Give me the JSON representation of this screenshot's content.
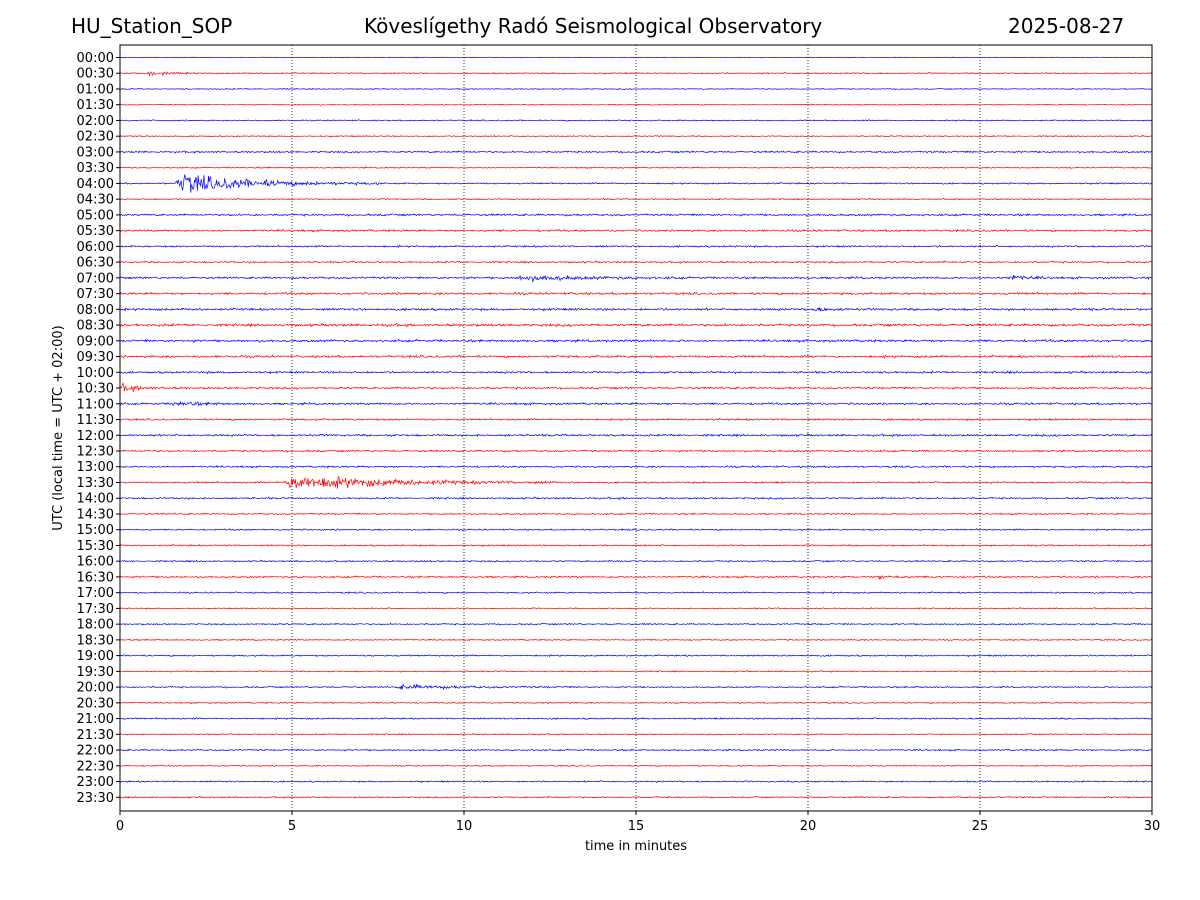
{
  "header": {
    "station": "HU_Station_SOP",
    "title": "Köveslígethy Radó Seismological Observatory",
    "date": "2025-08-27"
  },
  "chart_data": {
    "type": "line",
    "title": "Köveslígethy Radó Seismological Observatory",
    "xlabel": "time in minutes",
    "ylabel": "UTC (local time = UTC + 02:00)",
    "xlim": [
      0,
      30
    ],
    "xticks": [
      "0",
      "5",
      "10",
      "15",
      "20",
      "25",
      "30"
    ],
    "xtick_values": [
      0,
      5,
      10,
      15,
      20,
      25,
      30
    ],
    "grid": "vertical dotted at x ticks",
    "row_labels": [
      "00:00",
      "00:30",
      "01:00",
      "01:30",
      "02:00",
      "02:30",
      "03:00",
      "03:30",
      "04:00",
      "04:30",
      "05:00",
      "05:30",
      "06:00",
      "06:30",
      "07:00",
      "07:30",
      "08:00",
      "08:30",
      "09:00",
      "09:30",
      "10:00",
      "10:30",
      "11:00",
      "11:30",
      "12:00",
      "12:30",
      "13:00",
      "13:30",
      "14:00",
      "14:30",
      "15:00",
      "15:30",
      "16:00",
      "16:30",
      "17:00",
      "17:30",
      "18:00",
      "18:30",
      "19:00",
      "19:30",
      "20:00",
      "20:30",
      "21:00",
      "21:30",
      "22:00",
      "22:30",
      "23:00",
      "23:30"
    ],
    "colors": [
      "#0000ff",
      "#ff0000"
    ],
    "noise_level": [
      0.3,
      0.5,
      0.4,
      0.4,
      0.5,
      0.5,
      0.7,
      0.5,
      0.6,
      0.5,
      0.8,
      0.8,
      0.7,
      0.7,
      0.8,
      0.9,
      0.9,
      1.0,
      0.9,
      0.9,
      0.8,
      0.8,
      0.8,
      0.7,
      0.8,
      0.7,
      0.7,
      0.7,
      0.7,
      0.6,
      0.6,
      0.6,
      0.6,
      0.7,
      0.6,
      0.5,
      0.6,
      0.5,
      0.6,
      0.5,
      0.6,
      0.5,
      0.6,
      0.5,
      0.6,
      0.5,
      0.6,
      0.6
    ],
    "events": [
      {
        "row": "00:30",
        "start_min": 0.8,
        "duration_min": 1.5,
        "amplitude": 2.0
      },
      {
        "row": "04:00",
        "start_min": 1.6,
        "duration_min": 6.0,
        "amplitude": 8.0
      },
      {
        "row": "07:00",
        "start_min": 11.5,
        "duration_min": 5.0,
        "amplitude": 2.2
      },
      {
        "row": "07:00",
        "start_min": 25.8,
        "duration_min": 1.5,
        "amplitude": 2.0
      },
      {
        "row": "08:00",
        "start_min": 20.0,
        "duration_min": 1.5,
        "amplitude": 1.8
      },
      {
        "row": "10:30",
        "start_min": 0.0,
        "duration_min": 1.5,
        "amplitude": 2.5
      },
      {
        "row": "11:00",
        "start_min": 1.5,
        "duration_min": 2.0,
        "amplitude": 2.0
      },
      {
        "row": "13:30",
        "start_min": 4.7,
        "duration_min": 8.0,
        "amplitude": 6.5
      },
      {
        "row": "16:30",
        "start_min": 22.0,
        "duration_min": 1.5,
        "amplitude": 1.6
      },
      {
        "row": "20:00",
        "start_min": 8.0,
        "duration_min": 5.0,
        "amplitude": 1.6
      }
    ]
  }
}
